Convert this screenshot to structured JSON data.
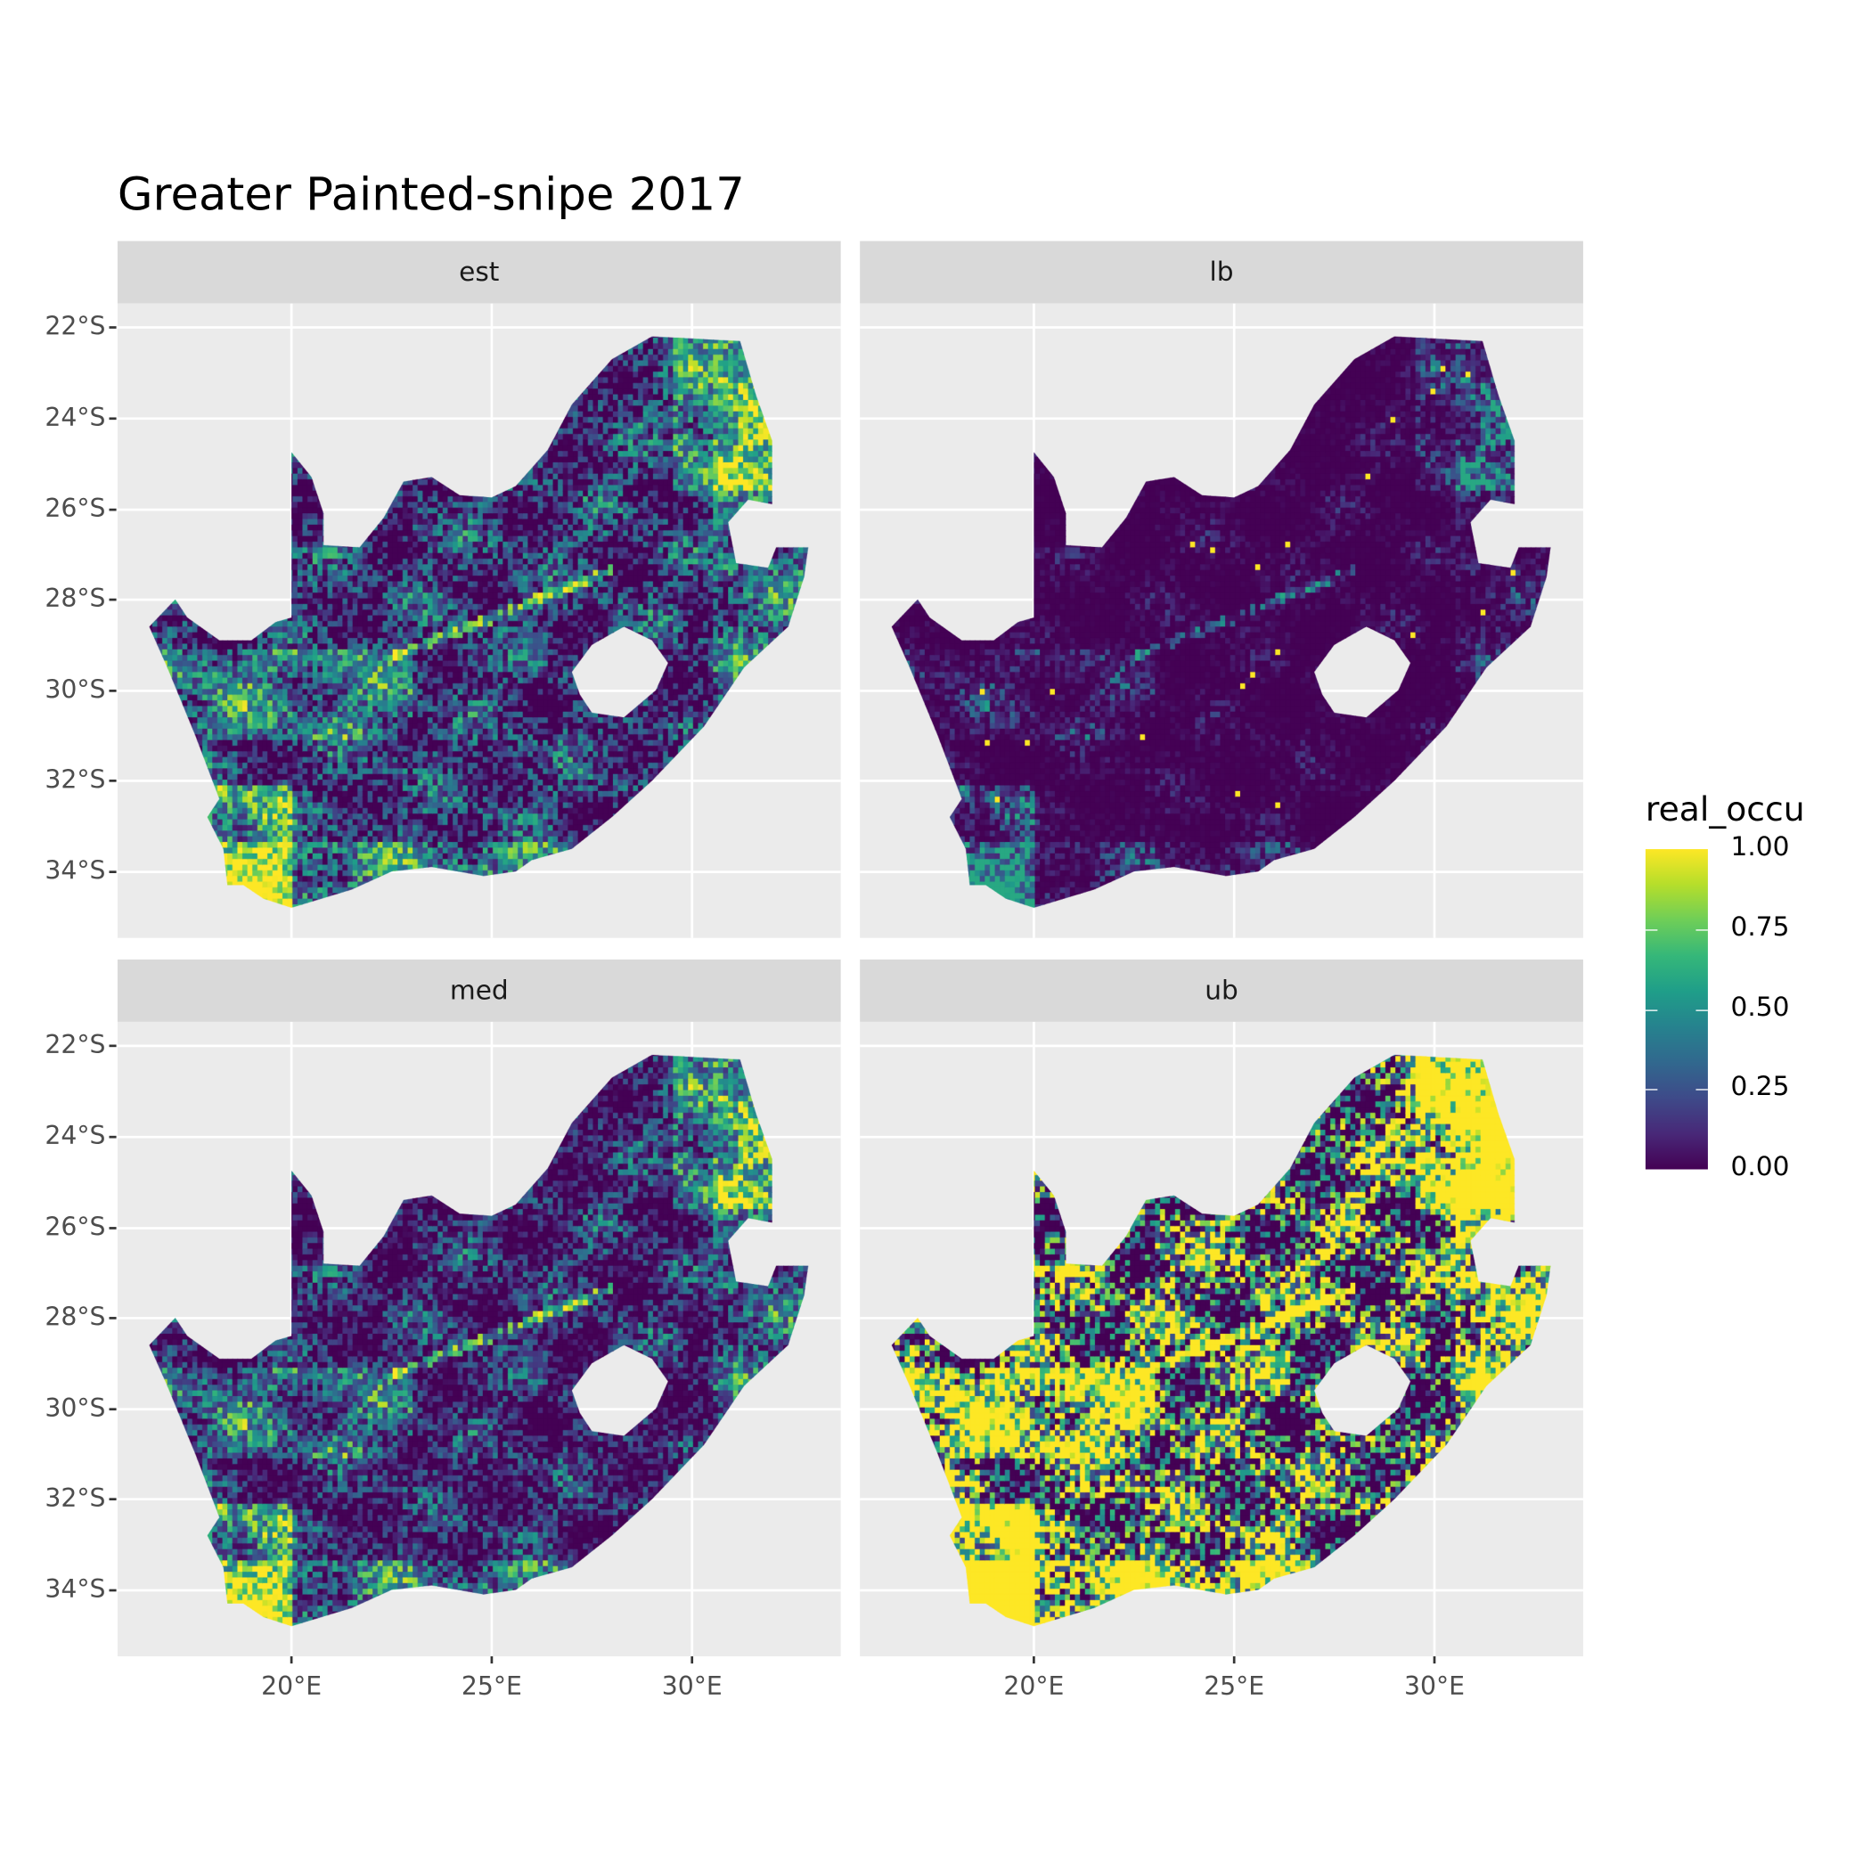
{
  "title": "Greater Painted-snipe 2017",
  "facets": [
    "est",
    "lb",
    "med",
    "ub"
  ],
  "y_ticks": [
    "22°S",
    "24°S",
    "26°S",
    "28°S",
    "30°S",
    "32°S",
    "34°S"
  ],
  "x_ticks": [
    "20°E",
    "25°E",
    "30°E"
  ],
  "legend": {
    "title": "real_occu",
    "labels": [
      "1.00",
      "0.75",
      "0.50",
      "0.25",
      "0.00"
    ],
    "colormap": "viridis",
    "colors": [
      "#440154",
      "#3b528b",
      "#21918c",
      "#5ec962",
      "#fde725"
    ]
  },
  "chart_data": {
    "type": "heatmap",
    "title": "Greater Painted-snipe 2017",
    "facets": [
      "est",
      "lb",
      "med",
      "ub"
    ],
    "x_ticks_lon": [
      20,
      25,
      30
    ],
    "y_ticks_lat": [
      -22,
      -24,
      -26,
      -28,
      -30,
      -32,
      -34
    ],
    "xlim": [
      16,
      34
    ],
    "ylim": [
      -35.5,
      -21.5
    ],
    "fill": "real_occu",
    "fill_range": [
      0,
      1
    ],
    "grid": true,
    "legend_position": "right"
  }
}
